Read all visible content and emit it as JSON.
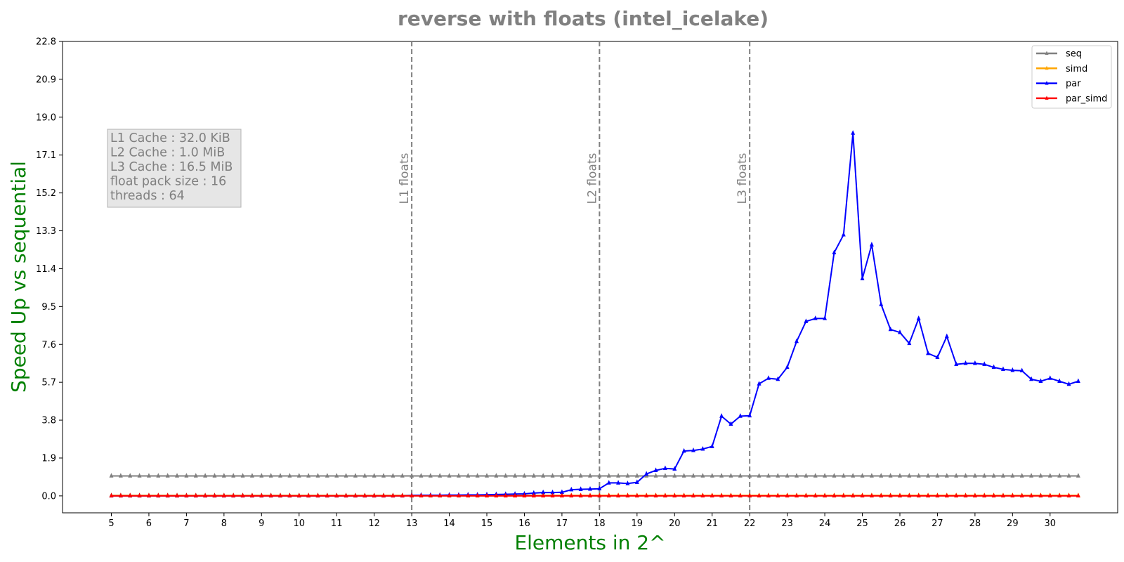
{
  "chart_data": {
    "type": "line",
    "title": "reverse with floats  (intel_icelake)",
    "xlabel": "Elements in 2^",
    "ylabel": "Speed Up vs sequential",
    "xlim": [
      3.7,
      31.8
    ],
    "ylim": [
      -0.85,
      22.8
    ],
    "x_ticks": [
      5,
      6,
      7,
      8,
      9,
      10,
      11,
      12,
      13,
      14,
      15,
      16,
      17,
      18,
      19,
      20,
      21,
      22,
      23,
      24,
      25,
      26,
      27,
      28,
      29,
      30
    ],
    "y_ticks": [
      "0.0",
      "1.9",
      "3.8",
      "5.7",
      "7.6",
      "9.5",
      "11.4",
      "13.3",
      "15.2",
      "17.1",
      "19.0",
      "20.9",
      "22.8"
    ],
    "grid": false,
    "legend_position": "top-right",
    "vertical_markers": [
      {
        "x": 13,
        "label": "L1 floats"
      },
      {
        "x": 18,
        "label": "L2 floats"
      },
      {
        "x": 22,
        "label": "L3 floats"
      }
    ],
    "info_box": [
      "L1 Cache : 32.0 KiB",
      "L2 Cache : 1.0 MiB",
      "L3 Cache : 16.5 MiB",
      "float pack size : 16",
      "threads : 64"
    ],
    "x": [
      5.0,
      5.25,
      5.5,
      5.75,
      6.0,
      6.25,
      6.5,
      6.75,
      7.0,
      7.25,
      7.5,
      7.75,
      8.0,
      8.25,
      8.5,
      8.75,
      9.0,
      9.25,
      9.5,
      9.75,
      10.0,
      10.25,
      10.5,
      10.75,
      11.0,
      11.25,
      11.5,
      11.75,
      12.0,
      12.25,
      12.5,
      12.75,
      13.0,
      13.25,
      13.5,
      13.75,
      14.0,
      14.25,
      14.5,
      14.75,
      15.0,
      15.25,
      15.5,
      15.75,
      16.0,
      16.25,
      16.5,
      16.75,
      17.0,
      17.25,
      17.5,
      17.75,
      18.0,
      18.25,
      18.5,
      18.75,
      19.0,
      19.25,
      19.5,
      19.75,
      20.0,
      20.25,
      20.5,
      20.75,
      21.0,
      21.25,
      21.5,
      21.75,
      22.0,
      22.25,
      22.5,
      22.75,
      23.0,
      23.25,
      23.5,
      23.75,
      24.0,
      24.25,
      24.5,
      24.75,
      25.0,
      25.25,
      25.5,
      25.75,
      26.0,
      26.25,
      26.5,
      26.75,
      27.0,
      27.25,
      27.5,
      27.75,
      28.0,
      28.25,
      28.5,
      28.75,
      29.0,
      29.25,
      29.5,
      29.75,
      30.0,
      30.25,
      30.5,
      30.75
    ],
    "series": [
      {
        "name": "seq",
        "color": "#808080",
        "values": [
          1.0,
          1.0,
          1.0,
          1.0,
          1.0,
          1.0,
          1.0,
          1.0,
          1.0,
          1.0,
          1.0,
          1.0,
          1.0,
          1.0,
          1.0,
          1.0,
          1.0,
          1.0,
          1.0,
          1.0,
          1.0,
          1.0,
          1.0,
          1.0,
          1.0,
          1.0,
          1.0,
          1.0,
          1.0,
          1.0,
          1.0,
          1.0,
          1.0,
          1.0,
          1.0,
          1.0,
          1.0,
          1.0,
          1.0,
          1.0,
          1.0,
          1.0,
          1.0,
          1.0,
          1.0,
          1.0,
          1.0,
          1.0,
          1.0,
          1.0,
          1.0,
          1.0,
          1.0,
          1.0,
          1.0,
          1.0,
          1.0,
          1.0,
          1.0,
          1.0,
          1.0,
          1.0,
          1.0,
          1.0,
          1.0,
          1.0,
          1.0,
          1.0,
          1.0,
          1.0,
          1.0,
          1.0,
          1.0,
          1.0,
          1.0,
          1.0,
          1.0,
          1.0,
          1.0,
          1.0,
          1.0,
          1.0,
          1.0,
          1.0,
          1.0,
          1.0,
          1.0,
          1.0,
          1.0,
          1.0,
          1.0,
          1.0,
          1.0,
          1.0,
          1.0,
          1.0,
          1.0,
          1.0,
          1.0,
          1.0,
          1.0,
          1.0,
          1.0,
          1.0
        ]
      },
      {
        "name": "simd",
        "color": "#ffa500",
        "values": [
          0.02,
          0.02,
          0.02,
          0.02,
          0.02,
          0.02,
          0.02,
          0.02,
          0.02,
          0.02,
          0.02,
          0.02,
          0.02,
          0.02,
          0.02,
          0.02,
          0.02,
          0.02,
          0.02,
          0.02,
          0.02,
          0.02,
          0.02,
          0.02,
          0.02,
          0.02,
          0.02,
          0.02,
          0.02,
          0.02,
          0.02,
          0.02,
          0.02,
          0.02,
          0.02,
          0.02,
          0.02,
          0.02,
          0.02,
          0.02,
          0.02,
          0.02,
          0.02,
          0.02,
          0.02,
          0.02,
          0.02,
          0.02,
          0.02,
          0.02,
          0.02,
          0.02,
          0.02,
          0.02,
          0.02,
          0.02,
          0.02,
          0.02,
          0.02,
          0.02,
          0.02,
          0.02,
          0.02,
          0.02,
          0.02,
          0.02,
          0.02,
          0.02,
          0.02,
          0.02,
          0.02,
          0.02,
          0.02,
          0.02,
          0.02,
          0.02,
          0.02,
          0.02,
          0.02,
          0.02,
          0.02,
          0.02,
          0.02,
          0.02,
          0.02,
          0.02,
          0.02,
          0.02,
          0.02,
          0.02,
          0.02,
          0.02,
          0.02,
          0.02,
          0.02,
          0.02,
          0.02,
          0.02,
          0.02,
          0.02,
          0.02,
          0.02,
          0.02,
          0.02
        ]
      },
      {
        "name": "par",
        "color": "#0000ff",
        "values": [
          0.0,
          0.0,
          0.0,
          0.0,
          0.0,
          0.0,
          0.0,
          0.0,
          0.0,
          0.0,
          0.0,
          0.0,
          0.0,
          0.0,
          0.0,
          0.0,
          0.0,
          0.0,
          0.0,
          0.0,
          0.0,
          0.0,
          0.0,
          0.0,
          0.0,
          0.0,
          0.0,
          0.0,
          0.0,
          0.0,
          0.0,
          0.0,
          0.02,
          0.03,
          0.03,
          0.03,
          0.04,
          0.04,
          0.05,
          0.05,
          0.06,
          0.07,
          0.08,
          0.09,
          0.1,
          0.14,
          0.17,
          0.17,
          0.18,
          0.31,
          0.33,
          0.34,
          0.36,
          0.65,
          0.65,
          0.62,
          0.68,
          1.1,
          1.28,
          1.38,
          1.35,
          2.25,
          2.28,
          2.35,
          2.48,
          4.0,
          3.6,
          4.0,
          4.02,
          5.62,
          5.9,
          5.85,
          6.45,
          7.75,
          8.75,
          8.9,
          8.9,
          12.2,
          13.1,
          18.2,
          10.9,
          12.6,
          9.6,
          8.35,
          8.2,
          7.65,
          8.9,
          7.15,
          6.95,
          8.0,
          6.6,
          6.65,
          6.65,
          6.6,
          6.45,
          6.35,
          6.3,
          6.28,
          5.85,
          5.75,
          5.9,
          5.75,
          5.6,
          5.75
        ]
      },
      {
        "name": "par_simd",
        "color": "#ff0000",
        "values": [
          0.0,
          0.0,
          0.0,
          0.0,
          0.0,
          0.0,
          0.0,
          0.0,
          0.0,
          0.0,
          0.0,
          0.0,
          0.0,
          0.0,
          0.0,
          0.0,
          0.0,
          0.0,
          0.0,
          0.0,
          0.0,
          0.0,
          0.0,
          0.0,
          0.0,
          0.0,
          0.0,
          0.0,
          0.0,
          0.0,
          0.0,
          0.0,
          0.0,
          0.0,
          0.0,
          0.0,
          0.0,
          0.0,
          0.0,
          0.0,
          0.0,
          0.0,
          0.0,
          0.0,
          0.0,
          0.0,
          0.0,
          0.0,
          0.0,
          0.0,
          0.0,
          0.0,
          0.0,
          0.0,
          0.0,
          0.0,
          0.0,
          0.0,
          0.0,
          0.0,
          0.0,
          0.0,
          0.0,
          0.0,
          0.0,
          0.0,
          0.0,
          0.0,
          0.0,
          0.0,
          0.0,
          0.0,
          0.0,
          0.0,
          0.0,
          0.0,
          0.0,
          0.0,
          0.0,
          0.0,
          0.0,
          0.0,
          0.0,
          0.0,
          0.0,
          0.0,
          0.0,
          0.0,
          0.0,
          0.0,
          0.0,
          0.0,
          0.0,
          0.0,
          0.0,
          0.0,
          0.0,
          0.0,
          0.0,
          0.0,
          0.0,
          0.0,
          0.0,
          0.0
        ]
      }
    ]
  }
}
